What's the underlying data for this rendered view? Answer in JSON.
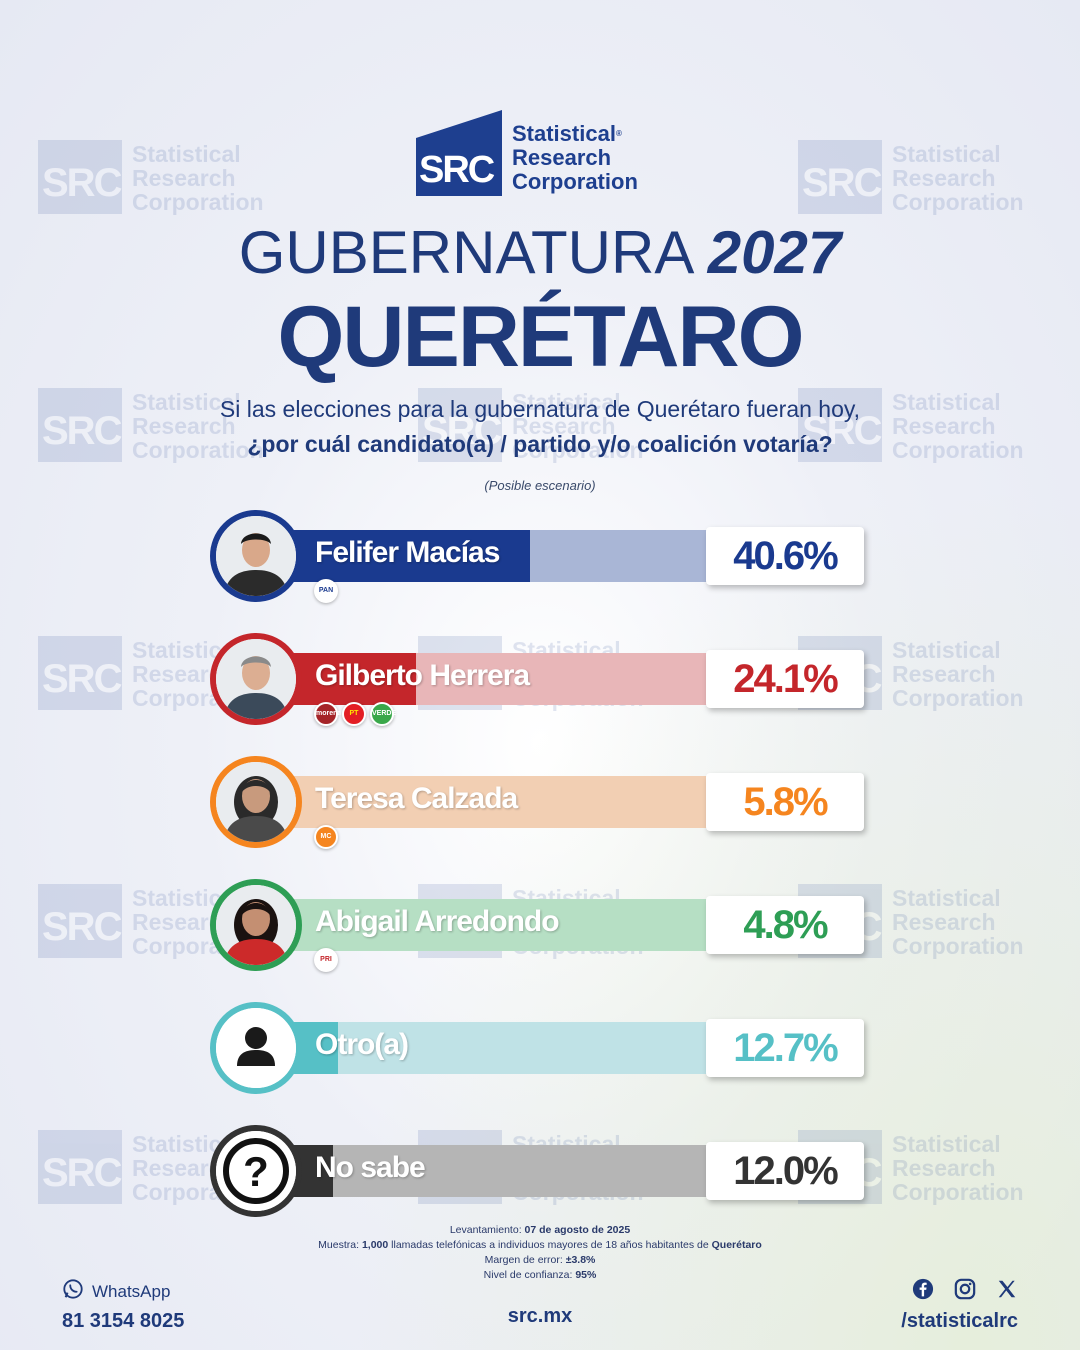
{
  "brand": {
    "logo_abbr": "SRC",
    "logo_line1": "Statistical",
    "logo_line2": "Research",
    "logo_line3": "Corporation",
    "registered_mark": "®",
    "color": "#1e3f8f"
  },
  "header": {
    "title_word": "GUBERNATURA",
    "title_year": "2027",
    "state": "QUERÉTARO",
    "question_line1": "Si las elecciones para la gubernatura de Querétaro fueran hoy,",
    "question_line2": "¿por cuál candidato(a) / partido y/o coalición votaría?",
    "scenario": "(Posible escenario)"
  },
  "chart_data": {
    "type": "bar",
    "categories": [
      "Felifer Macías",
      "Gilberto Herrera",
      "Teresa Calzada",
      "Abigail Arredondo",
      "Otro(a)",
      "No sabe"
    ],
    "values": [
      40.6,
      24.1,
      5.8,
      4.8,
      12.7,
      12.0
    ],
    "value_labels": [
      "40.6%",
      "24.1%",
      "5.8%",
      "4.8%",
      "12.7%",
      "12.0%"
    ],
    "parties": [
      [
        "PAN"
      ],
      [
        "morena",
        "PT",
        "VERDE"
      ],
      [
        "MC"
      ],
      [
        "PRI"
      ],
      [],
      []
    ],
    "colors": [
      "#1a3a8f",
      "#c4262b",
      "#f5851f",
      "#2e9e55",
      "#56c0c6",
      "#333333"
    ],
    "track_colors": [
      "#a9b6d6",
      "#e8b6b8",
      "#f2cfb3",
      "#b6dfc4",
      "#bfe2e6",
      "#b5b5b5"
    ],
    "xlim": [
      0,
      100
    ]
  },
  "footer": {
    "survey_date_label": "Levantamiento:",
    "survey_date": "07 de agosto de 2025",
    "sample_label": "Muestra:",
    "sample_count": "1,000",
    "sample_text": "llamadas telefónicas a individuos mayores de 18 años habitantes de",
    "sample_place": "Querétaro",
    "error_label": "Margen de error:",
    "error_value": "±3.8%",
    "confidence_label": "Nivel de confianza:",
    "confidence_value": "95%",
    "whatsapp_label": "WhatsApp",
    "whatsapp_number": "81 3154 8025",
    "website": "src.mx",
    "social_handle": "/statisticalrc"
  }
}
